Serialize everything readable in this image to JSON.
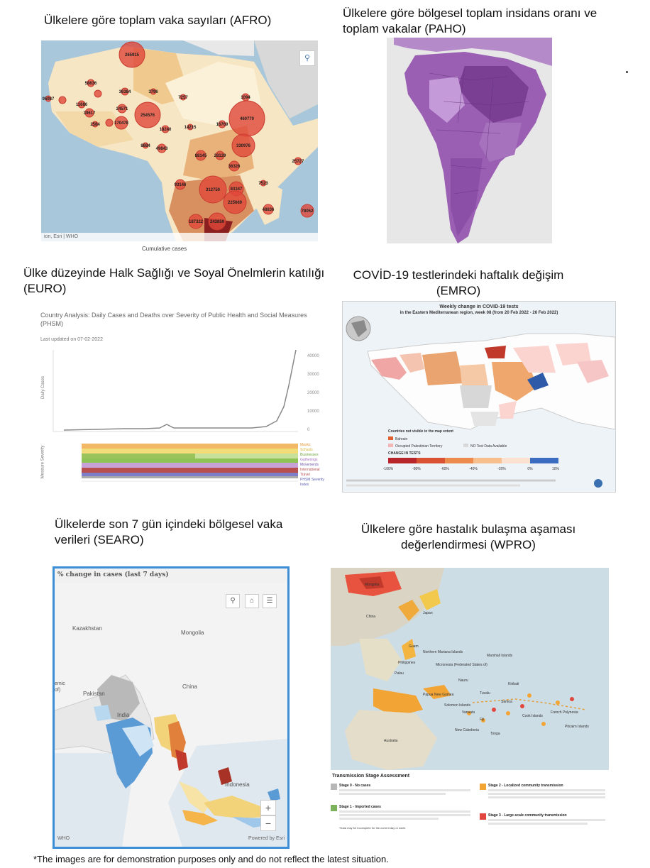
{
  "captions": {
    "afro": "Ülkelere göre toplam vaka sayıları (AFRO)",
    "paho": "Ülkelere göre bölgesel toplam insidans oranı ve toplam vakalar (PAHO)",
    "euro": "Ülke düzeyinde Halk Sağlığı ve Soyal Önelmlerin katılığı (EURO)",
    "emro": "COVİD-19 testlerindeki haftalık değişim (EMRO)",
    "searo": "Ülkelerde son 7 gün içindeki bölgesel vaka verileri (SEARO)",
    "wpro": "Ülkelere göre hastalık bulaşma aşaması değerlendirmesi (WPRO)"
  },
  "afro_map": {
    "bubbles": [
      "265915",
      "58636",
      "36384",
      "3796",
      "7257",
      "1094",
      "11686",
      "24571",
      "39617",
      "254576",
      "460770",
      "2584",
      "170478",
      "18240",
      "14215",
      "16769",
      "8684",
      "49843",
      "330976",
      "88145",
      "28139",
      "36326",
      "25727",
      "93146",
      "312750",
      "83347",
      "7523",
      "225669",
      "48836",
      "78052",
      "187322",
      "243859",
      "95087"
    ],
    "attribution": "ion, Esri | WHO",
    "footer": "Cumulative cases"
  },
  "euro_chart": {
    "title": "Country Analysis: Daily Cases and Deaths over Severity of Public Health and Social Measures (PHSM)",
    "updated": "Last updated on 07-02-2022",
    "y_axis_label": "Daily Cases",
    "measure_axis_label": "Measure Severity",
    "y_ticks": [
      "40000",
      "30000",
      "20000",
      "10000",
      "0"
    ],
    "measures": [
      "Masks",
      "Schools",
      "Businesses",
      "Gatherings",
      "Movements",
      "International Travel",
      "PHSM Severity Index"
    ]
  },
  "emro_map": {
    "title": "Weekly change in COVID-19 tests",
    "subtitle": "in the Eastern Mediterranean region, week 08 (from 20 Feb 2022 - 26 Feb 2022)",
    "legend_title": "Countries not visible in the map extent",
    "legend_items": [
      "Bahrain",
      "Occupied Palestinian Territory",
      "NO Test Data Available"
    ],
    "change_title": "CHANGE IN TESTS",
    "scale": [
      "-100%",
      "-80%",
      "-60%",
      "-40%",
      "-20%",
      "0%",
      "10%"
    ]
  },
  "searo_map": {
    "title": "% change in cases (last 7 days)",
    "labels": [
      "Kazakhstan",
      "Mongolia",
      "China",
      "Pakistan",
      "India",
      "Indonesia",
      "emic",
      "of)"
    ],
    "zoom_in": "+",
    "zoom_out": "−",
    "footer_left": "WHO",
    "footer_right": "Powered by Esri"
  },
  "wpro_map": {
    "labels": [
      "Mongolia",
      "China",
      "Japan",
      "Philippines",
      "Australia",
      "Papua New Guinea",
      "Solomon Islands",
      "New Caledonia",
      "Fiji",
      "French Polynesia",
      "Northern Mariana Islands",
      "Marshall Islands",
      "Micronesia (Federated States of)",
      "Kiribati",
      "Samoa",
      "Cook Islands",
      "Guam",
      "Palau",
      "Nauru",
      "Tuvalu",
      "Vanuatu",
      "Tonga",
      "Pitcairn Islands"
    ],
    "legend_title": "Transmission Stage Assessment",
    "stages": [
      {
        "name": "Stage 0 - No cases",
        "color": "#b8b8b8"
      },
      {
        "name": "Stage 1 - Imported cases",
        "color": "#7cb25a"
      },
      {
        "name": "Stage 2 - Localized community transmission",
        "color": "#f2a535"
      },
      {
        "name": "Stage 3 - Large-scale community transmission",
        "color": "#e2473f"
      }
    ],
    "note": "*Data may be incomplete for the current day or week"
  },
  "footnote": "*The images are for demonstration purposes only and do not reflect the latest situation."
}
